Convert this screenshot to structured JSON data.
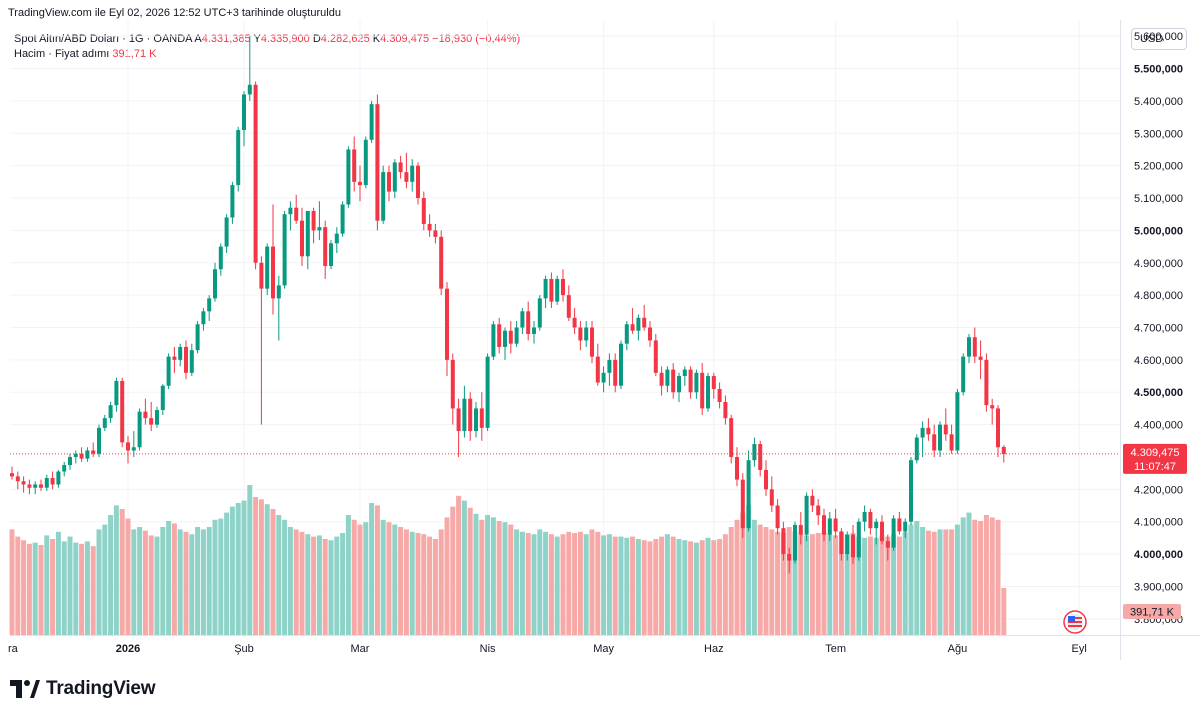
{
  "header": {
    "snapshot_line": "TradingView.com ile Eyl 02, 2026 12:52 UTC+3 tarihinde oluşturuldu"
  },
  "legend": {
    "symbol": "Spot Altın/ABD Doları · 1G · OANDA",
    "open_label": "A",
    "open_value": "4.331,385",
    "high_label": "Y",
    "high_value": "4.335,900",
    "low_label": "D",
    "low_value": "4.282,625",
    "close_label": "K",
    "close_value": "4.309,475",
    "change": "−18,930 (−0,44%)",
    "volume_label": "Hacim · Fiyat adımı",
    "volume_value": "391,71 K"
  },
  "toolbar": {
    "currency_button": "USD"
  },
  "price_tag": {
    "price": "4.309,475",
    "countdown": "11:07:47"
  },
  "volume_tag": {
    "value": "391,71 K"
  },
  "footer": {
    "brand": "TradingView"
  },
  "colors": {
    "up": "#089981",
    "down": "#f23645",
    "vol_up": "#8fd3c8",
    "vol_down": "#f7a9a7",
    "grid": "#f0f3fa"
  },
  "chart_data": {
    "type": "candlestick",
    "title": "Spot Altın/ABD Doları · 1G · OANDA",
    "currency": "USD",
    "ylim": [
      3750000,
      5650000
    ],
    "y_ticks": [
      {
        "value": 5600000,
        "label": "5.600,000",
        "bold": false
      },
      {
        "value": 5500000,
        "label": "5.500,000",
        "bold": true
      },
      {
        "value": 5400000,
        "label": "5.400,000",
        "bold": false
      },
      {
        "value": 5300000,
        "label": "5.300,000",
        "bold": false
      },
      {
        "value": 5200000,
        "label": "5.200,000",
        "bold": false
      },
      {
        "value": 5100000,
        "label": "5.100,000",
        "bold": false
      },
      {
        "value": 5000000,
        "label": "5.000,000",
        "bold": true
      },
      {
        "value": 4900000,
        "label": "4.900,000",
        "bold": false
      },
      {
        "value": 4800000,
        "label": "4.800,000",
        "bold": false
      },
      {
        "value": 4700000,
        "label": "4.700,000",
        "bold": false
      },
      {
        "value": 4600000,
        "label": "4.600,000",
        "bold": false
      },
      {
        "value": 4500000,
        "label": "4.500,000",
        "bold": true
      },
      {
        "value": 4400000,
        "label": "4.400,000",
        "bold": false
      },
      {
        "value": 4200000,
        "label": "4.200,000",
        "bold": false
      },
      {
        "value": 4100000,
        "label": "4.100,000",
        "bold": false
      },
      {
        "value": 4000000,
        "label": "4.000,000",
        "bold": true
      },
      {
        "value": 3900000,
        "label": "3.900,000",
        "bold": false
      },
      {
        "value": 3800000,
        "label": "3.800,000",
        "bold": false
      }
    ],
    "x_labels": [
      {
        "bar": -1,
        "label": "ra",
        "bold": false
      },
      {
        "bar": 20,
        "label": "2026",
        "bold": true
      },
      {
        "bar": 40,
        "label": "Şub",
        "bold": false
      },
      {
        "bar": 60,
        "label": "Mar",
        "bold": false
      },
      {
        "bar": 82,
        "label": "Nis",
        "bold": false
      },
      {
        "bar": 102,
        "label": "May",
        "bold": false
      },
      {
        "bar": 121,
        "label": "Haz",
        "bold": false
      },
      {
        "bar": 142,
        "label": "Tem",
        "bold": false
      },
      {
        "bar": 163,
        "label": "Ağu",
        "bold": false
      },
      {
        "bar": 184,
        "label": "Eyl",
        "bold": false
      }
    ],
    "last_close": 4309475,
    "volume_max": 1250,
    "candles": [
      [
        4250,
        4270,
        4230,
        4240,
        880
      ],
      [
        4240,
        4255,
        4200,
        4225,
        820
      ],
      [
        4225,
        4240,
        4190,
        4215,
        790
      ],
      [
        4215,
        4230,
        4185,
        4205,
        760
      ],
      [
        4205,
        4225,
        4185,
        4215,
        770
      ],
      [
        4215,
        4230,
        4195,
        4205,
        750
      ],
      [
        4205,
        4245,
        4195,
        4235,
        830
      ],
      [
        4235,
        4255,
        4200,
        4215,
        800
      ],
      [
        4215,
        4260,
        4205,
        4255,
        860
      ],
      [
        4255,
        4285,
        4240,
        4275,
        780
      ],
      [
        4275,
        4310,
        4260,
        4300,
        820
      ],
      [
        4300,
        4320,
        4280,
        4310,
        770
      ],
      [
        4310,
        4330,
        4285,
        4295,
        760
      ],
      [
        4295,
        4330,
        4285,
        4320,
        780
      ],
      [
        4320,
        4345,
        4300,
        4310,
        740
      ],
      [
        4310,
        4400,
        4300,
        4390,
        880
      ],
      [
        4390,
        4430,
        4380,
        4420,
        920
      ],
      [
        4420,
        4470,
        4405,
        4460,
        1000
      ],
      [
        4460,
        4545,
        4440,
        4535,
        1080
      ],
      [
        4535,
        4545,
        4330,
        4345,
        1050
      ],
      [
        4345,
        4365,
        4280,
        4320,
        970
      ],
      [
        4320,
        4380,
        4300,
        4330,
        880
      ],
      [
        4330,
        4450,
        4320,
        4440,
        900
      ],
      [
        4440,
        4480,
        4400,
        4420,
        870
      ],
      [
        4420,
        4470,
        4380,
        4400,
        830
      ],
      [
        4400,
        4455,
        4390,
        4445,
        820
      ],
      [
        4445,
        4525,
        4430,
        4520,
        900
      ],
      [
        4520,
        4620,
        4510,
        4610,
        950
      ],
      [
        4610,
        4640,
        4560,
        4600,
        930
      ],
      [
        4600,
        4650,
        4580,
        4640,
        880
      ],
      [
        4640,
        4660,
        4540,
        4560,
        860
      ],
      [
        4560,
        4650,
        4550,
        4630,
        840
      ],
      [
        4630,
        4720,
        4620,
        4710,
        900
      ],
      [
        4710,
        4760,
        4690,
        4750,
        880
      ],
      [
        4750,
        4800,
        4720,
        4790,
        900
      ],
      [
        4790,
        4900,
        4780,
        4880,
        960
      ],
      [
        4880,
        4960,
        4860,
        4950,
        970
      ],
      [
        4950,
        5050,
        4930,
        5040,
        1020
      ],
      [
        5040,
        5150,
        5020,
        5140,
        1070
      ],
      [
        5140,
        5320,
        5120,
        5310,
        1100
      ],
      [
        5310,
        5430,
        5260,
        5420,
        1120
      ],
      [
        5420,
        5600,
        5400,
        5450,
        1250
      ],
      [
        5450,
        5460,
        4880,
        4900,
        1150
      ],
      [
        4900,
        4920,
        4400,
        4820,
        1130
      ],
      [
        4820,
        4960,
        4800,
        4950,
        1090
      ],
      [
        4950,
        5080,
        4740,
        4790,
        1050
      ],
      [
        4790,
        4860,
        4660,
        4830,
        1000
      ],
      [
        4830,
        5060,
        4820,
        5050,
        960
      ],
      [
        5050,
        5090,
        5000,
        5070,
        900
      ],
      [
        5070,
        5110,
        5020,
        5030,
        880
      ],
      [
        5030,
        5070,
        4890,
        4920,
        860
      ],
      [
        4920,
        5000,
        4880,
        5060,
        840
      ],
      [
        5060,
        5070,
        4960,
        5000,
        820
      ],
      [
        5000,
        5090,
        4970,
        5010,
        830
      ],
      [
        5010,
        5030,
        4850,
        4890,
        800
      ],
      [
        4890,
        4970,
        4880,
        4960,
        790
      ],
      [
        4960,
        5010,
        4930,
        4990,
        820
      ],
      [
        4990,
        5090,
        4980,
        5080,
        850
      ],
      [
        5080,
        5260,
        5070,
        5250,
        1000
      ],
      [
        5250,
        5290,
        5120,
        5150,
        960
      ],
      [
        5150,
        5200,
        5090,
        5140,
        920
      ],
      [
        5140,
        5290,
        5130,
        5280,
        940
      ],
      [
        5280,
        5400,
        5270,
        5390,
        1100
      ],
      [
        5390,
        5420,
        5000,
        5030,
        1080
      ],
      [
        5030,
        5200,
        5020,
        5180,
        960
      ],
      [
        5180,
        5200,
        5090,
        5120,
        940
      ],
      [
        5120,
        5220,
        5100,
        5210,
        920
      ],
      [
        5210,
        5230,
        5160,
        5180,
        900
      ],
      [
        5180,
        5240,
        5130,
        5150,
        880
      ],
      [
        5150,
        5220,
        5120,
        5200,
        860
      ],
      [
        5200,
        5210,
        5080,
        5100,
        850
      ],
      [
        5100,
        5120,
        5000,
        5020,
        840
      ],
      [
        5020,
        5050,
        4980,
        5000,
        820
      ],
      [
        5000,
        5020,
        4960,
        4980,
        800
      ],
      [
        4980,
        5000,
        4800,
        4820,
        880
      ],
      [
        4820,
        4840,
        4550,
        4600,
        980
      ],
      [
        4600,
        4620,
        4400,
        4450,
        1070
      ],
      [
        4450,
        4480,
        4300,
        4380,
        1160
      ],
      [
        4380,
        4520,
        4360,
        4480,
        1120
      ],
      [
        4480,
        4500,
        4350,
        4380,
        1060
      ],
      [
        4380,
        4470,
        4360,
        4450,
        1010
      ],
      [
        4450,
        4500,
        4350,
        4390,
        960
      ],
      [
        4390,
        4620,
        4380,
        4610,
        1000
      ],
      [
        4610,
        4720,
        4600,
        4710,
        980
      ],
      [
        4710,
        4730,
        4620,
        4640,
        950
      ],
      [
        4640,
        4700,
        4600,
        4690,
        940
      ],
      [
        4690,
        4720,
        4620,
        4650,
        920
      ],
      [
        4650,
        4720,
        4640,
        4700,
        880
      ],
      [
        4700,
        4760,
        4680,
        4750,
        860
      ],
      [
        4750,
        4780,
        4660,
        4680,
        850
      ],
      [
        4680,
        4720,
        4650,
        4700,
        840
      ],
      [
        4700,
        4800,
        4690,
        4790,
        880
      ],
      [
        4790,
        4860,
        4760,
        4850,
        860
      ],
      [
        4850,
        4870,
        4760,
        4780,
        840
      ],
      [
        4780,
        4860,
        4770,
        4850,
        820
      ],
      [
        4850,
        4880,
        4780,
        4800,
        840
      ],
      [
        4800,
        4830,
        4720,
        4730,
        860
      ],
      [
        4730,
        4760,
        4680,
        4700,
        850
      ],
      [
        4700,
        4720,
        4630,
        4660,
        860
      ],
      [
        4660,
        4720,
        4640,
        4700,
        840
      ],
      [
        4700,
        4720,
        4590,
        4610,
        880
      ],
      [
        4610,
        4650,
        4520,
        4530,
        860
      ],
      [
        4530,
        4580,
        4500,
        4560,
        830
      ],
      [
        4560,
        4620,
        4520,
        4600,
        840
      ],
      [
        4600,
        4620,
        4500,
        4520,
        820
      ],
      [
        4520,
        4660,
        4510,
        4650,
        820
      ],
      [
        4650,
        4720,
        4630,
        4710,
        810
      ],
      [
        4710,
        4760,
        4680,
        4690,
        820
      ],
      [
        4690,
        4740,
        4660,
        4730,
        800
      ],
      [
        4730,
        4770,
        4690,
        4700,
        790
      ],
      [
        4700,
        4720,
        4640,
        4660,
        780
      ],
      [
        4660,
        4680,
        4550,
        4560,
        800
      ],
      [
        4560,
        4580,
        4490,
        4520,
        820
      ],
      [
        4520,
        4580,
        4500,
        4570,
        840
      ],
      [
        4570,
        4590,
        4480,
        4500,
        820
      ],
      [
        4500,
        4560,
        4470,
        4550,
        800
      ],
      [
        4550,
        4580,
        4520,
        4570,
        790
      ],
      [
        4570,
        4580,
        4480,
        4500,
        780
      ],
      [
        4500,
        4570,
        4480,
        4560,
        770
      ],
      [
        4560,
        4590,
        4430,
        4450,
        790
      ],
      [
        4450,
        4560,
        4440,
        4550,
        810
      ],
      [
        4550,
        4560,
        4480,
        4510,
        790
      ],
      [
        4510,
        4530,
        4450,
        4470,
        800
      ],
      [
        4470,
        4490,
        4400,
        4420,
        840
      ],
      [
        4420,
        4430,
        4280,
        4300,
        900
      ],
      [
        4300,
        4330,
        4210,
        4230,
        960
      ],
      [
        4230,
        4250,
        4050,
        4080,
        1020
      ],
      [
        4080,
        4320,
        4070,
        4290,
        1080
      ],
      [
        4290,
        4360,
        4270,
        4340,
        960
      ],
      [
        4340,
        4350,
        4240,
        4260,
        920
      ],
      [
        4260,
        4290,
        4180,
        4200,
        900
      ],
      [
        4200,
        4240,
        4130,
        4150,
        880
      ],
      [
        4150,
        4170,
        4060,
        4080,
        860
      ],
      [
        4080,
        4100,
        3980,
        4000,
        850
      ],
      [
        4000,
        4020,
        3940,
        3980,
        900
      ],
      [
        3980,
        4100,
        3970,
        4090,
        860
      ],
      [
        4090,
        4130,
        4030,
        4060,
        840
      ],
      [
        4060,
        4190,
        4040,
        4180,
        830
      ],
      [
        4180,
        4200,
        4130,
        4150,
        840
      ],
      [
        4150,
        4170,
        4090,
        4120,
        850
      ],
      [
        4120,
        4140,
        4040,
        4060,
        860
      ],
      [
        4060,
        4130,
        4040,
        4110,
        840
      ],
      [
        4110,
        4140,
        4050,
        4070,
        830
      ],
      [
        4070,
        4080,
        3980,
        4000,
        860
      ],
      [
        4000,
        4070,
        3980,
        4060,
        840
      ],
      [
        4060,
        4090,
        3970,
        3990,
        850
      ],
      [
        3990,
        4110,
        3980,
        4100,
        820
      ],
      [
        4100,
        4150,
        4070,
        4130,
        810
      ],
      [
        4130,
        4140,
        4060,
        4080,
        820
      ],
      [
        4080,
        4110,
        4030,
        4100,
        810
      ],
      [
        4100,
        4120,
        4030,
        4040,
        830
      ],
      [
        4040,
        4060,
        3980,
        4020,
        820
      ],
      [
        4020,
        4120,
        4010,
        4110,
        840
      ],
      [
        4110,
        4130,
        4060,
        4070,
        820
      ],
      [
        4070,
        4110,
        4050,
        4100,
        860
      ],
      [
        4100,
        4300,
        4090,
        4290,
        920
      ],
      [
        4290,
        4370,
        4280,
        4360,
        950
      ],
      [
        4360,
        4410,
        4300,
        4390,
        900
      ],
      [
        4390,
        4420,
        4350,
        4370,
        870
      ],
      [
        4370,
        4400,
        4300,
        4320,
        860
      ],
      [
        4320,
        4410,
        4300,
        4400,
        880
      ],
      [
        4400,
        4450,
        4350,
        4370,
        880
      ],
      [
        4370,
        4400,
        4310,
        4320,
        880
      ],
      [
        4320,
        4510,
        4310,
        4500,
        920
      ],
      [
        4500,
        4620,
        4490,
        4610,
        980
      ],
      [
        4610,
        4680,
        4590,
        4670,
        1020
      ],
      [
        4670,
        4700,
        4590,
        4610,
        960
      ],
      [
        4610,
        4660,
        4540,
        4600,
        950
      ],
      [
        4600,
        4620,
        4440,
        4460,
        1000
      ],
      [
        4460,
        4480,
        4400,
        4450,
        980
      ],
      [
        4450,
        4460,
        4300,
        4330,
        960
      ],
      [
        4331,
        4336,
        4283,
        4309,
        392
      ]
    ]
  }
}
